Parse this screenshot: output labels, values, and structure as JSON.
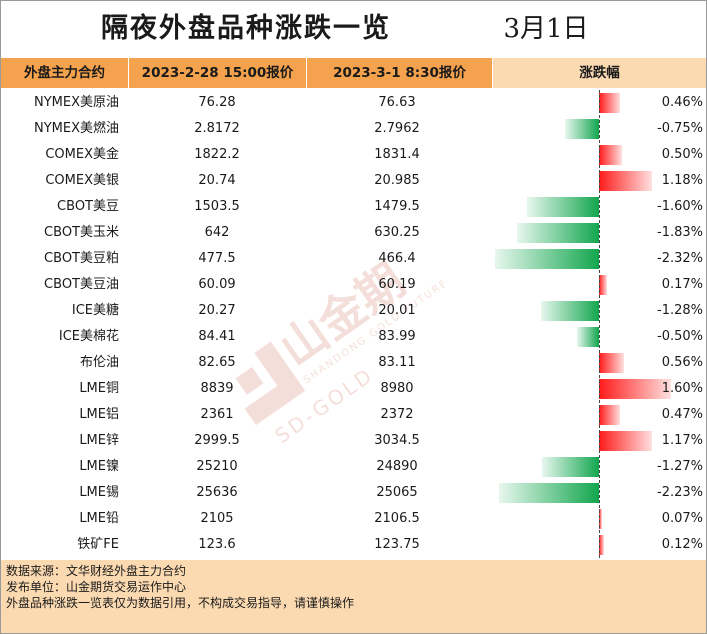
{
  "header": {
    "title": "隔夜外盘品种涨跌一览",
    "date": "3月1日"
  },
  "columns": [
    "外盘主力合约",
    "2023-2-28 15:00报价",
    "2023-3-1 8:30报价",
    "涨跌幅"
  ],
  "rows": [
    {
      "name": "NYMEX美原油",
      "v1": "76.28",
      "v2": "76.63",
      "pct": "0.46%",
      "value": 0.46
    },
    {
      "name": "NYMEX美燃油",
      "v1": "2.8172",
      "v2": "2.7962",
      "pct": "-0.75%",
      "value": -0.75
    },
    {
      "name": "COMEX美金",
      "v1": "1822.2",
      "v2": "1831.4",
      "pct": "0.50%",
      "value": 0.5
    },
    {
      "name": "COMEX美银",
      "v1": "20.74",
      "v2": "20.985",
      "pct": "1.18%",
      "value": 1.18
    },
    {
      "name": "CBOT美豆",
      "v1": "1503.5",
      "v2": "1479.5",
      "pct": "-1.60%",
      "value": -1.6
    },
    {
      "name": "CBOT美玉米",
      "v1": "642",
      "v2": "630.25",
      "pct": "-1.83%",
      "value": -1.83
    },
    {
      "name": "CBOT美豆粕",
      "v1": "477.5",
      "v2": "466.4",
      "pct": "-2.32%",
      "value": -2.32
    },
    {
      "name": "CBOT美豆油",
      "v1": "60.09",
      "v2": "60.19",
      "pct": "0.17%",
      "value": 0.17
    },
    {
      "name": "ICE美糖",
      "v1": "20.27",
      "v2": "20.01",
      "pct": "-1.28%",
      "value": -1.28
    },
    {
      "name": "ICE美棉花",
      "v1": "84.41",
      "v2": "83.99",
      "pct": "-0.50%",
      "value": -0.5
    },
    {
      "name": "布伦油",
      "v1": "82.65",
      "v2": "83.11",
      "pct": "0.56%",
      "value": 0.56
    },
    {
      "name": "LME铜",
      "v1": "8839",
      "v2": "8980",
      "pct": "1.60%",
      "value": 1.6
    },
    {
      "name": "LME铝",
      "v1": "2361",
      "v2": "2372",
      "pct": "0.47%",
      "value": 0.47
    },
    {
      "name": "LME锌",
      "v1": "2999.5",
      "v2": "3034.5",
      "pct": "1.17%",
      "value": 1.17
    },
    {
      "name": "LME镍",
      "v1": "25210",
      "v2": "24890",
      "pct": "-1.27%",
      "value": -1.27
    },
    {
      "name": "LME锡",
      "v1": "25636",
      "v2": "25065",
      "pct": "-2.23%",
      "value": -2.23
    },
    {
      "name": "LME铅",
      "v1": "2105",
      "v2": "2106.5",
      "pct": "0.07%",
      "value": 0.07
    },
    {
      "name": "铁矿FE",
      "v1": "123.6",
      "v2": "123.75",
      "pct": "0.12%",
      "value": 0.12
    }
  ],
  "watermark": {
    "main": "山金期货",
    "sub": "SHANDONG GOLD FUTURES",
    "logo": "SD-GOLD"
  },
  "footer": {
    "source": "数据来源：文华财经外盘主力合约",
    "publisher": "发布单位：山金期货交易运作中心",
    "disclaimer": "外盘品种涨跌一览表仅为数据引用，不构成交易指导，请谨慎操作"
  },
  "colors": {
    "up": "#ff1a1a",
    "down": "#12a64e",
    "header": "#f4a24d",
    "header_light": "#fbd9b1"
  }
}
